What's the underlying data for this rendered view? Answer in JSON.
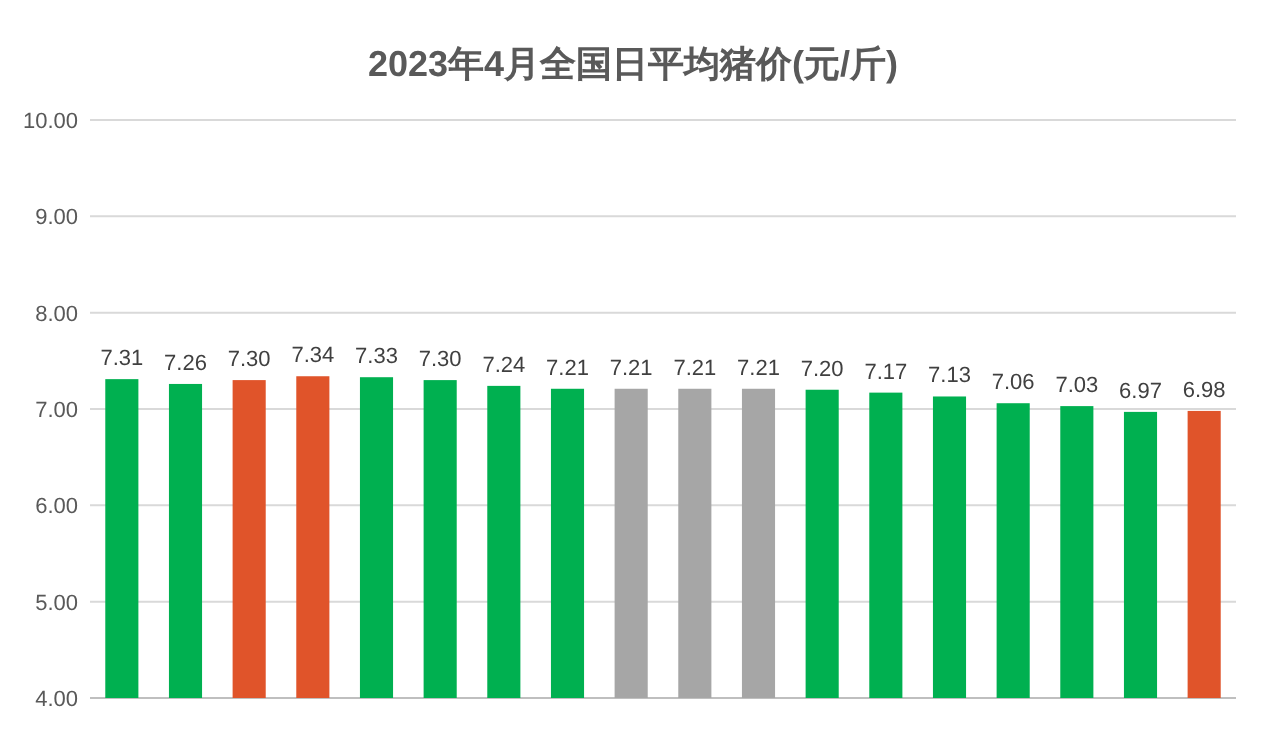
{
  "chart_data": {
    "type": "bar",
    "title": "2023年4月全国日平均猪价(元/斤)",
    "categories": [
      null,
      null,
      null,
      null,
      null,
      null,
      null,
      null,
      null,
      null,
      null,
      null,
      null,
      null,
      null,
      null,
      null,
      null
    ],
    "values": [
      7.31,
      7.26,
      7.3,
      7.34,
      7.33,
      7.3,
      7.24,
      7.21,
      7.21,
      7.21,
      7.21,
      7.2,
      7.17,
      7.13,
      7.06,
      7.03,
      6.97,
      6.98
    ],
    "colors": [
      "#00b050",
      "#00b050",
      "#e0542a",
      "#e0542a",
      "#00b050",
      "#00b050",
      "#00b050",
      "#00b050",
      "#a6a6a6",
      "#a6a6a6",
      "#a6a6a6",
      "#00b050",
      "#00b050",
      "#00b050",
      "#00b050",
      "#00b050",
      "#00b050",
      "#e0542a"
    ],
    "ylim": [
      4,
      10
    ],
    "yticks": [
      {
        "value": 4,
        "label": "4.00"
      },
      {
        "value": 5,
        "label": "5.00"
      },
      {
        "value": 6,
        "label": "6.00"
      },
      {
        "value": 7,
        "label": "7.00"
      },
      {
        "value": 8,
        "label": "8.00"
      },
      {
        "value": 9,
        "label": "9.00"
      },
      {
        "value": 10,
        "label": "10.00"
      }
    ],
    "value_labels": [
      "7.31",
      "7.26",
      "7.30",
      "7.34",
      "7.33",
      "7.30",
      "7.24",
      "7.21",
      "7.21",
      "7.21",
      "7.21",
      "7.20",
      "7.17",
      "7.13",
      "7.06",
      "7.03",
      "6.97",
      "6.98"
    ],
    "grid": "y"
  }
}
